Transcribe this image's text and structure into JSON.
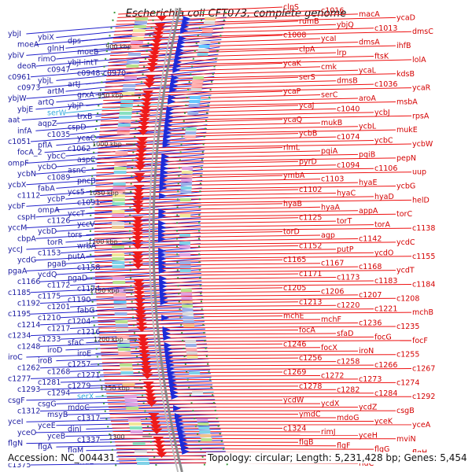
{
  "title": "Escherichia coli CFT073, complete genome",
  "footer": {
    "accession": "Accession: NC_004431",
    "topology": "Topology: circular; Length: 5,231,428 bp; Genes: 5,454"
  },
  "colors": {
    "left_lines": "#2222cc",
    "right_lines": "#ee1111",
    "rna_label": "#33aadd",
    "backbone": "#888888",
    "tick_dots": "#3a9a3a"
  },
  "scale_ticks": [
    "900 kbp",
    "950 kbp",
    "1000 kbp",
    "1050 kbp",
    "1100 kbp",
    "1150 kbp",
    "1200 kbp",
    "1250 kbp",
    "1300"
  ],
  "left_genes": [
    "ybjI",
    "ybiX",
    "dps",
    "moeA",
    "glnH",
    "moeB",
    "ybiV",
    "rimO",
    "ybjI-intT",
    "deoR",
    "c0947",
    "c0948-c0970",
    "c0961",
    "ybjL",
    "artJ",
    "c0973",
    "artM",
    "grxA",
    "ybjW",
    "artQ",
    "ybjP",
    "ybjE",
    "serW",
    "trxB",
    "aat",
    "aqpZ",
    "cspD",
    "infA",
    "c1035",
    "ycaC",
    "c1051",
    "pflA",
    "c1062",
    "focA_2",
    "ybcC",
    "aspC",
    "ompF",
    "ycbO",
    "asnC",
    "ycbN",
    "c1089",
    "pncB",
    "ycbX",
    "fabA",
    "ycs5",
    "c1112",
    "ycbP",
    "c1091",
    "ycbF",
    "ompA",
    "yccT",
    "cspH",
    "c1126",
    "yccV",
    "yccM",
    "ycbD",
    "tors",
    "cbpA",
    "torR",
    "wrbA",
    "yccJ",
    "c1153",
    "putA",
    "ycdG",
    "pgaB",
    "c1158",
    "pgaA",
    "ycdQ",
    "pgaD",
    "c1166",
    "c1172",
    "c1174",
    "c1185",
    "c1175",
    "c1190",
    "c1192",
    "c1201",
    "fabG",
    "c1195",
    "c1210",
    "c1204",
    "c1214",
    "c1217",
    "c1216",
    "c1234",
    "c1233",
    "sfaC",
    "c1248",
    "iroD",
    "iroE",
    "iroC",
    "iroB",
    "c1257",
    "c1262",
    "c1268",
    "c1271",
    "c1277",
    "c1281",
    "c1279",
    "c1293",
    "c1294",
    "serX",
    "csgF",
    "csgG",
    "mdoC",
    "c1312",
    "msyB",
    "c1317",
    "yceI",
    "yceE",
    "dinI",
    "yceO",
    "yceB",
    "c1337",
    "flgN",
    "flgA",
    "flgM",
    "mar",
    "rne",
    "fhuE",
    "c1375"
  ],
  "right_genes": [
    "clpS",
    "c1016",
    "macA",
    "ycaD",
    "rumB",
    "ybjQ",
    "c1013",
    "dmsC",
    "c1008",
    "ycaI",
    "dmsA",
    "ihfB",
    "clpA",
    "lrp",
    "ftsK",
    "lolA",
    "ycaK",
    "cmk",
    "ycaL",
    "kdsB",
    "serS",
    "dmsB",
    "c1036",
    "ycaR",
    "ycaP",
    "serC",
    "aroA",
    "msbA",
    "ycaJ",
    "c1040",
    "ycbJ",
    "rpsA",
    "ycaQ",
    "mukB",
    "ycbL",
    "mukE",
    "ycbB",
    "c1074",
    "ycbC",
    "ycbW",
    "rlmL",
    "pqiA",
    "pqiB",
    "pepN",
    "pyrD",
    "c1094",
    "c1106",
    "uup",
    "ymbA",
    "c1103",
    "hyaE",
    "ycbG",
    "c1102",
    "hyaC",
    "hyaD",
    "helD",
    "hyaB",
    "hyaA",
    "appA",
    "torC",
    "c1125",
    "torT",
    "torA",
    "c1138",
    "torD",
    "agp",
    "c1142",
    "ycdC",
    "c1152",
    "putP",
    "ycdO",
    "c1155",
    "c1165",
    "c1167",
    "c1168",
    "ycdT",
    "c1171",
    "c1173",
    "c1183",
    "c1184",
    "c1205",
    "c1206",
    "c1207",
    "c1208",
    "c1213",
    "c1220",
    "c1221",
    "mchB",
    "mchE",
    "mchF",
    "c1236",
    "c1235",
    "focA",
    "sfaD",
    "focG",
    "focF",
    "c1246",
    "focX",
    "iroN",
    "c1255",
    "c1256",
    "c1258",
    "c1266",
    "c1267",
    "c1269",
    "c1272",
    "c1273",
    "c1274",
    "c1278",
    "c1282",
    "c1284",
    "c1292",
    "ycdW",
    "ycdX",
    "ycdZ",
    "csgB",
    "ymdC",
    "mdoG",
    "yceK",
    "yceA",
    "c1324",
    "rimJ",
    "yceH",
    "mviN",
    "flgB",
    "flgF",
    "flgG",
    "flgH",
    "flgL",
    "c1354",
    "rluC"
  ]
}
